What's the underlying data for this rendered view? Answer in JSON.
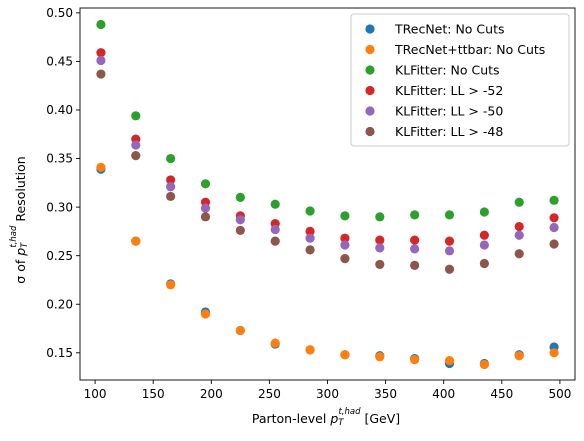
{
  "chart_data": {
    "type": "scatter",
    "title": "",
    "xlabel_main": "Parton-level ",
    "xlabel_var": "p",
    "xlabel_sub": "T",
    "xlabel_sup": "t,had",
    "xlabel_unit": " [GeV]",
    "ylabel_main": "σ of ",
    "ylabel_var": "p",
    "ylabel_sub": "T",
    "ylabel_sup": "t,had",
    "ylabel_unit": " Resolution",
    "xlim": [
      87,
      513
    ],
    "ylim": [
      0.122,
      0.505
    ],
    "xticks": [
      100,
      150,
      200,
      250,
      300,
      350,
      400,
      450,
      500
    ],
    "xtick_labels": [
      "100",
      "150",
      "200",
      "250",
      "300",
      "350",
      "400",
      "450",
      "500"
    ],
    "yticks": [
      0.15,
      0.2,
      0.25,
      0.3,
      0.35,
      0.4,
      0.45,
      0.5
    ],
    "ytick_labels": [
      "0.15",
      "0.20",
      "0.25",
      "0.30",
      "0.35",
      "0.40",
      "0.45",
      "0.50"
    ],
    "grid": false,
    "legend_position": "top-right",
    "x": [
      105,
      135,
      165,
      195,
      225,
      255,
      285,
      315,
      345,
      375,
      405,
      435,
      465,
      495
    ],
    "series": [
      {
        "name": "TRecNet: No Cuts",
        "color": "#1f77b4",
        "values": [
          0.339,
          0.265,
          0.221,
          0.192,
          0.173,
          0.159,
          0.153,
          0.148,
          0.147,
          0.144,
          0.139,
          0.139,
          0.148,
          0.156
        ]
      },
      {
        "name": "TRecNet+ttbar: No Cuts",
        "color": "#ff7f0e",
        "values": [
          0.341,
          0.265,
          0.22,
          0.19,
          0.173,
          0.16,
          0.153,
          0.148,
          0.146,
          0.143,
          0.142,
          0.138,
          0.147,
          0.15
        ]
      },
      {
        "name": "KLFitter: No Cuts",
        "color": "#2ca02c",
        "values": [
          0.488,
          0.394,
          0.35,
          0.324,
          0.31,
          0.303,
          0.296,
          0.291,
          0.29,
          0.292,
          0.292,
          0.295,
          0.305,
          0.307
        ]
      },
      {
        "name": "KLFitter: LL > -52",
        "color": "#d62728",
        "values": [
          0.459,
          0.37,
          0.328,
          0.305,
          0.291,
          0.283,
          0.275,
          0.268,
          0.266,
          0.266,
          0.265,
          0.271,
          0.28,
          0.289
        ]
      },
      {
        "name": "KLFitter: LL > -50",
        "color": "#9467bd",
        "values": [
          0.451,
          0.364,
          0.321,
          0.299,
          0.287,
          0.277,
          0.268,
          0.261,
          0.258,
          0.257,
          0.255,
          0.261,
          0.271,
          0.279
        ]
      },
      {
        "name": "KLFitter: LL > -48",
        "color": "#8c564b",
        "values": [
          0.437,
          0.353,
          0.311,
          0.29,
          0.276,
          0.265,
          0.256,
          0.247,
          0.241,
          0.24,
          0.236,
          0.242,
          0.252,
          0.262
        ]
      }
    ]
  }
}
